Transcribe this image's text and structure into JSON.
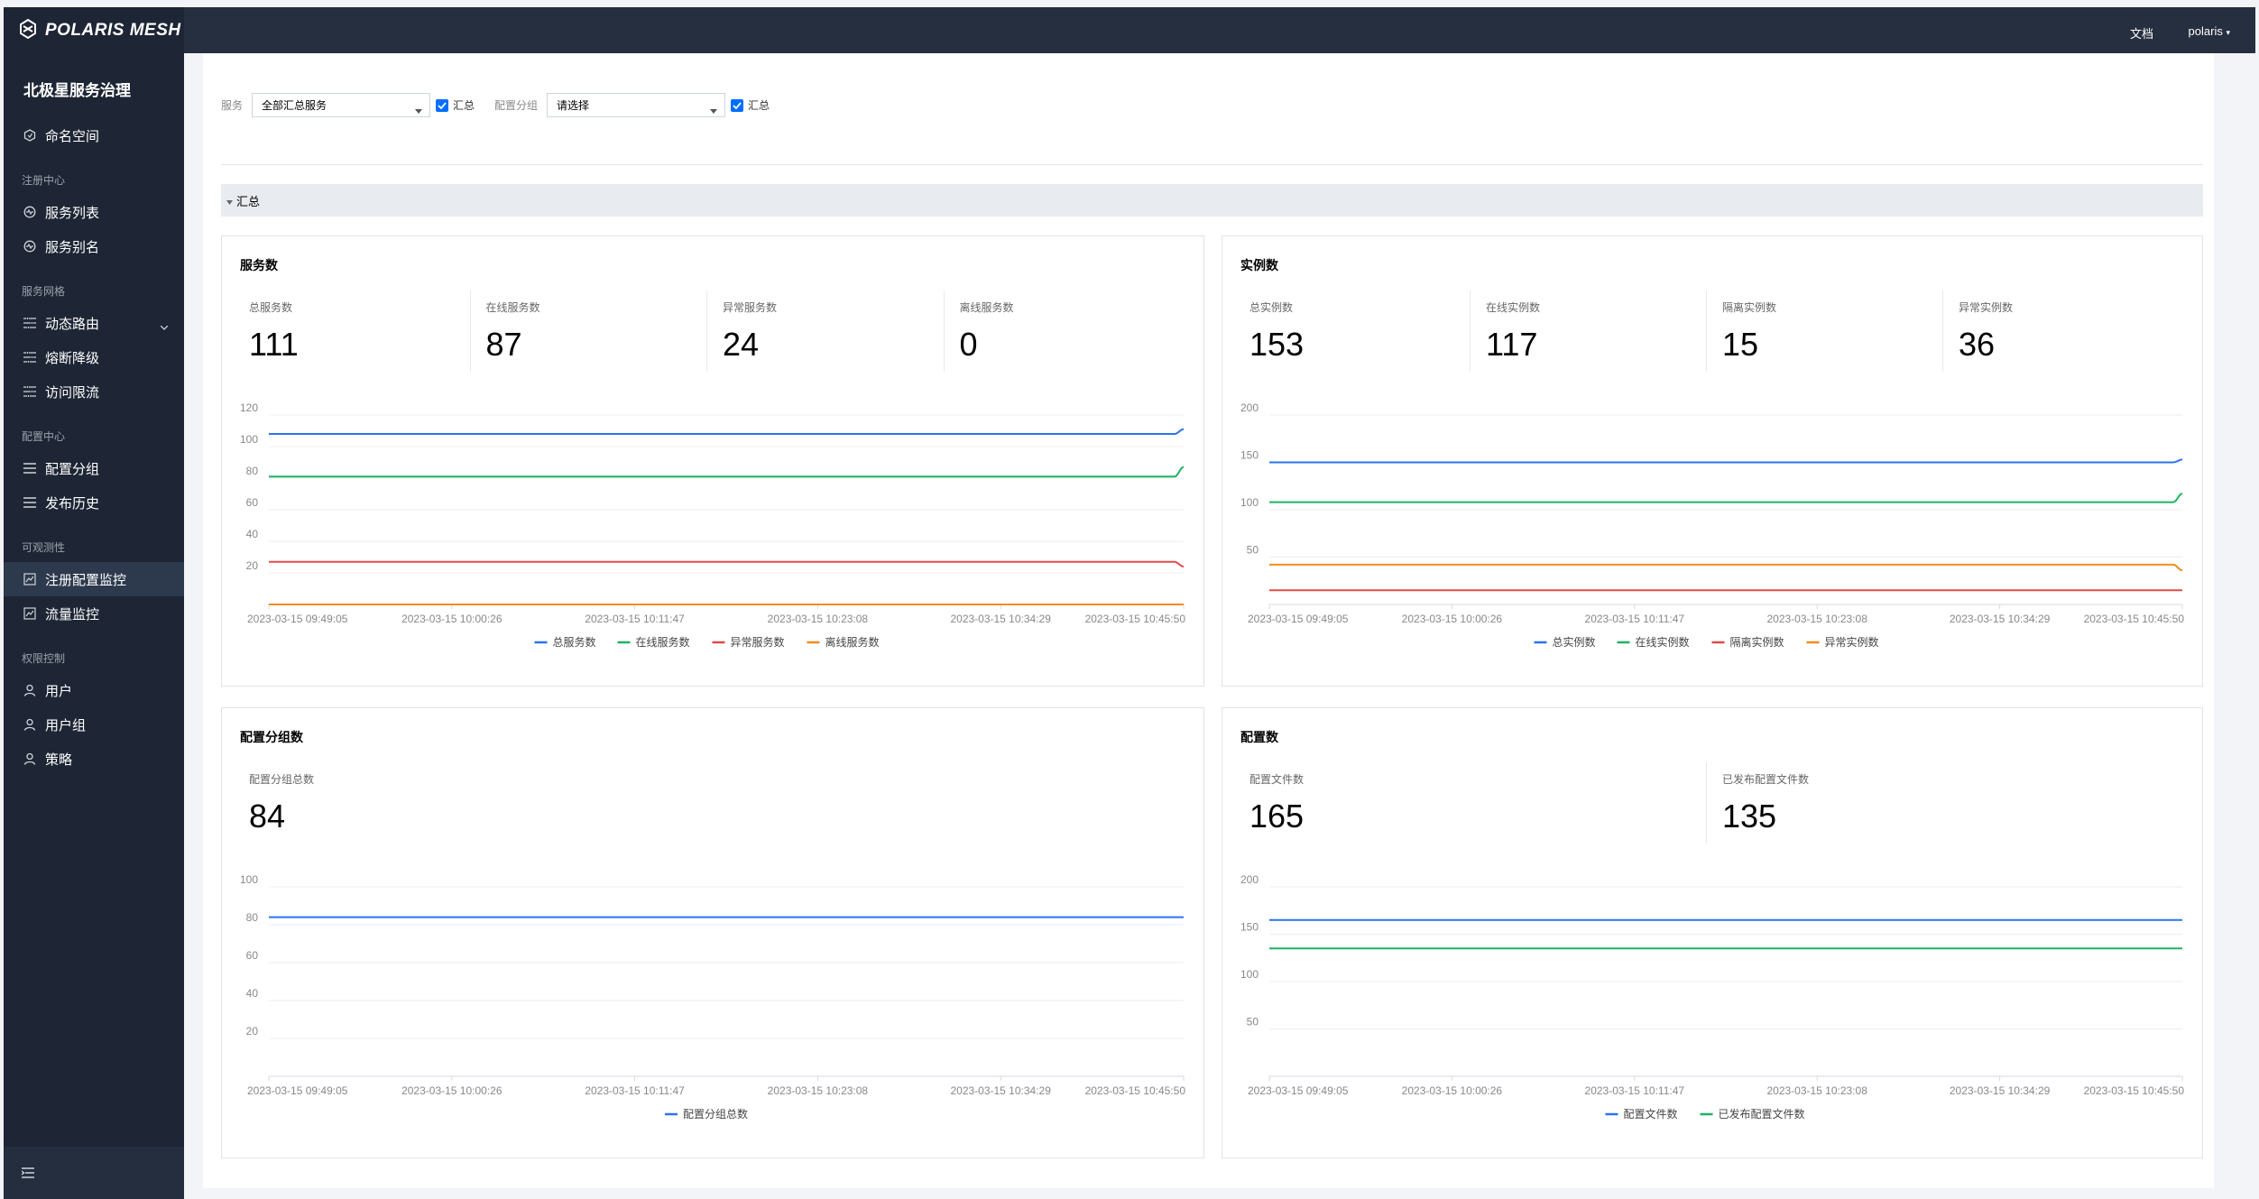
{
  "brand": "POLARIS MESH",
  "app_title": "北极星服务治理",
  "nav": [
    {
      "type": "item",
      "label": "命名空间",
      "icon": "namespace-icon"
    },
    {
      "type": "group",
      "label": "注册中心"
    },
    {
      "type": "item",
      "label": "服务列表",
      "icon": "service-icon"
    },
    {
      "type": "item",
      "label": "服务别名",
      "icon": "service-icon"
    },
    {
      "type": "group",
      "label": "服务网格"
    },
    {
      "type": "item",
      "label": "动态路由",
      "icon": "rule-icon",
      "expand": true
    },
    {
      "type": "item",
      "label": "熔断降级",
      "icon": "rule-icon"
    },
    {
      "type": "item",
      "label": "访问限流",
      "icon": "rule-icon"
    },
    {
      "type": "group",
      "label": "配置中心"
    },
    {
      "type": "item",
      "label": "配置分组",
      "icon": "list-icon"
    },
    {
      "type": "item",
      "label": "发布历史",
      "icon": "list-icon"
    },
    {
      "type": "group",
      "label": "可观测性"
    },
    {
      "type": "item",
      "label": "注册配置监控",
      "icon": "monitor-icon",
      "active": true
    },
    {
      "type": "item",
      "label": "流量监控",
      "icon": "monitor-icon"
    },
    {
      "type": "group",
      "label": "权限控制"
    },
    {
      "type": "item",
      "label": "用户",
      "icon": "user-icon"
    },
    {
      "type": "item",
      "label": "用户组",
      "icon": "user-icon"
    },
    {
      "type": "item",
      "label": "策略",
      "icon": "user-icon"
    }
  ],
  "topbar": {
    "docs": "文档",
    "user": "polaris"
  },
  "filters": {
    "service_label": "服务",
    "service_value": "全部汇总服务",
    "service_check": "汇总",
    "group_label": "配置分组",
    "group_value": "请选择",
    "group_check": "汇总"
  },
  "section_title": "汇总",
  "colors": {
    "blue": "#2a74f0",
    "green": "#1fb364",
    "red": "#e24a4a",
    "orange": "#f28c1e"
  },
  "panels": [
    {
      "title": "服务数",
      "metrics": [
        {
          "label": "总服务数",
          "value": "111"
        },
        {
          "label": "在线服务数",
          "value": "87"
        },
        {
          "label": "异常服务数",
          "value": "24"
        },
        {
          "label": "离线服务数",
          "value": "0"
        }
      ],
      "chart_data": {
        "type": "line",
        "x": [
          "2023-03-15 09:49:05",
          "2023-03-15 10:00:26",
          "2023-03-15 10:11:47",
          "2023-03-15 10:23:08",
          "2023-03-15 10:34:29",
          "2023-03-15 10:45:50"
        ],
        "yticks": [
          20,
          40,
          60,
          80,
          100,
          120
        ],
        "ylim": [
          0,
          120
        ],
        "series": [
          {
            "name": "总服务数",
            "color": "blue",
            "values": [
              108,
              108,
              108,
              108,
              108,
              111
            ]
          },
          {
            "name": "在线服务数",
            "color": "green",
            "values": [
              81,
              81,
              81,
              81,
              81,
              87
            ]
          },
          {
            "name": "异常服务数",
            "color": "red",
            "values": [
              27,
              27,
              27,
              27,
              27,
              24
            ]
          },
          {
            "name": "离线服务数",
            "color": "orange",
            "values": [
              0,
              0,
              0,
              0,
              0,
              0
            ]
          }
        ]
      }
    },
    {
      "title": "实例数",
      "metrics": [
        {
          "label": "总实例数",
          "value": "153"
        },
        {
          "label": "在线实例数",
          "value": "117"
        },
        {
          "label": "隔离实例数",
          "value": "15"
        },
        {
          "label": "异常实例数",
          "value": "36"
        }
      ],
      "chart_data": {
        "type": "line",
        "x": [
          "2023-03-15 09:49:05",
          "2023-03-15 10:00:26",
          "2023-03-15 10:11:47",
          "2023-03-15 10:23:08",
          "2023-03-15 10:34:29",
          "2023-03-15 10:45:50"
        ],
        "yticks": [
          50,
          100,
          150,
          200
        ],
        "ylim": [
          0,
          200
        ],
        "series": [
          {
            "name": "总实例数",
            "color": "blue",
            "values": [
              150,
              150,
              150,
              150,
              150,
              153
            ]
          },
          {
            "name": "在线实例数",
            "color": "green",
            "values": [
              108,
              108,
              108,
              108,
              108,
              117
            ]
          },
          {
            "name": "隔离实例数",
            "color": "red",
            "values": [
              15,
              15,
              15,
              15,
              15,
              15
            ]
          },
          {
            "name": "异常实例数",
            "color": "orange",
            "values": [
              42,
              42,
              42,
              42,
              42,
              36
            ]
          }
        ]
      }
    },
    {
      "title": "配置分组数",
      "metrics": [
        {
          "label": "配置分组总数",
          "value": "84"
        }
      ],
      "chart_data": {
        "type": "line",
        "x": [
          "2023-03-15 09:49:05",
          "2023-03-15 10:00:26",
          "2023-03-15 10:11:47",
          "2023-03-15 10:23:08",
          "2023-03-15 10:34:29",
          "2023-03-15 10:45:50"
        ],
        "yticks": [
          20,
          40,
          60,
          80,
          100
        ],
        "ylim": [
          0,
          100
        ],
        "series": [
          {
            "name": "配置分组总数",
            "color": "blue",
            "values": [
              84,
              84,
              84,
              84,
              84,
              84
            ]
          }
        ]
      }
    },
    {
      "title": "配置数",
      "metrics": [
        {
          "label": "配置文件数",
          "value": "165"
        },
        {
          "label": "已发布配置文件数",
          "value": "135"
        }
      ],
      "chart_data": {
        "type": "line",
        "x": [
          "2023-03-15 09:49:05",
          "2023-03-15 10:00:26",
          "2023-03-15 10:11:47",
          "2023-03-15 10:23:08",
          "2023-03-15 10:34:29",
          "2023-03-15 10:45:50"
        ],
        "yticks": [
          50,
          100,
          150,
          200
        ],
        "ylim": [
          0,
          200
        ],
        "series": [
          {
            "name": "配置文件数",
            "color": "blue",
            "values": [
              165,
              165,
              165,
              165,
              165,
              165
            ]
          },
          {
            "name": "已发布配置文件数",
            "color": "green",
            "values": [
              135,
              135,
              135,
              135,
              135,
              135
            ]
          }
        ]
      }
    }
  ]
}
